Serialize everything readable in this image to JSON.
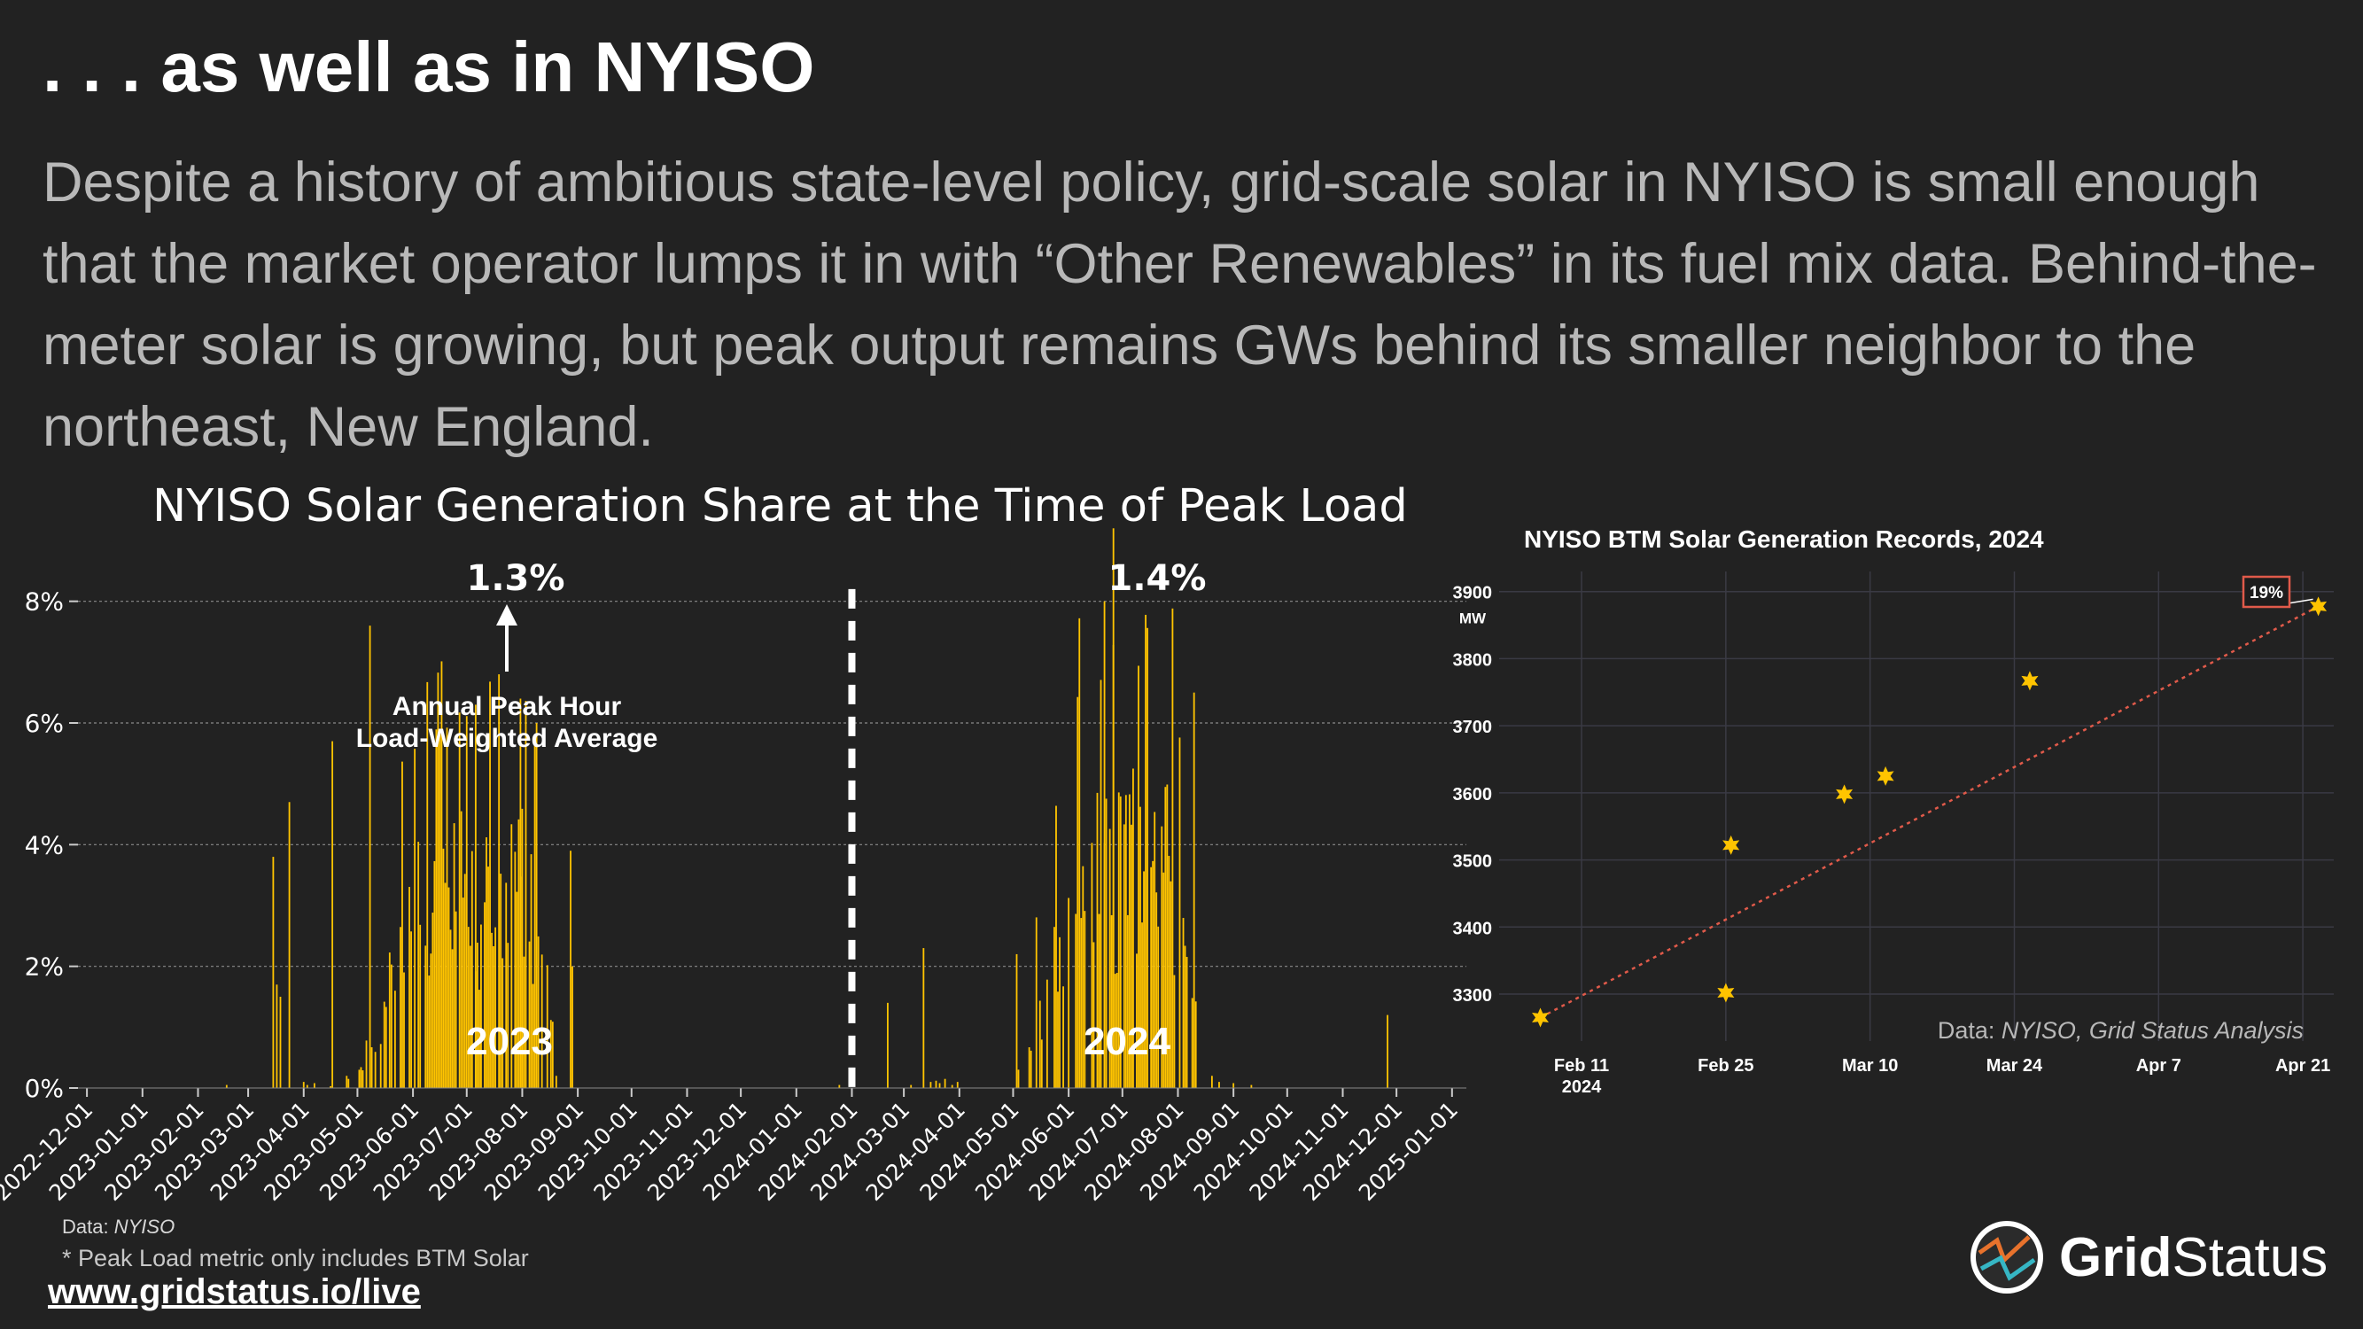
{
  "slide": {
    "title": ". . . as well as in NYISO",
    "subtitle": "Despite a history of ambitious state-level policy, grid-scale solar in NYISO is small enough that the market operator lumps it in with “Other Renewables” in its fuel mix data. Behind-the-meter solar is growing, but peak output remains GWs behind its smaller neighbor to the northeast, New England."
  },
  "footer": {
    "source_label": "Data:",
    "source_value": "NYISO",
    "note": "* Peak Load metric only includes BTM Solar",
    "link": "www.gridstatus.io/live"
  },
  "logo": {
    "bold": "Grid",
    "regular": "Status",
    "icon": "grid-status-logo-icon"
  },
  "colors": {
    "background": "#222222",
    "bar": "#ffc400",
    "trend": "#e05a4a",
    "marker": "#ffc400",
    "subtitle": "#b8b8b8"
  },
  "chart_data": [
    {
      "type": "bar",
      "title": "NYISO Solar Generation Share at the Time of Peak Load",
      "xlabel": "",
      "ylabel": "",
      "ylim": [
        0,
        9
      ],
      "y_ticks": [
        "0%",
        "2%",
        "4%",
        "6%",
        "8%"
      ],
      "y_tick_values": [
        0,
        2,
        4,
        6,
        8
      ],
      "grid": true,
      "x_ticks": [
        "2022-12-01",
        "2023-01-01",
        "2023-02-01",
        "2023-03-01",
        "2023-04-01",
        "2023-05-01",
        "2023-06-01",
        "2023-07-01",
        "2023-08-01",
        "2023-09-01",
        "2023-10-01",
        "2023-11-01",
        "2023-12-01",
        "2024-01-01",
        "2024-02-01",
        "2024-03-01",
        "2024-04-01",
        "2024-05-01",
        "2024-06-01",
        "2024-07-01",
        "2024-08-01",
        "2024-09-01",
        "2024-10-01",
        "2024-11-01",
        "2024-12-01",
        "2025-01-01"
      ],
      "x_range_days": [
        -5,
        770
      ],
      "x_origin_date": "2022-12-01",
      "bar_width_days": 1,
      "annotations": {
        "avg_2023": "1.3%",
        "avg_2024": "1.4%",
        "label_2023": "2023",
        "label_2024": "2024",
        "arrow_text_line1": "Annual Peak Hour",
        "arrow_text_line2": "Load-Weighted Average"
      },
      "series_description": "daily share of BTM solar in load at the hour of daily peak load (%)",
      "seed_2023": 2023,
      "seed_2024": 2024,
      "spikes": [
        {
          "day": 104,
          "value": 3.8
        },
        {
          "day": 106,
          "value": 1.7
        },
        {
          "day": 108,
          "value": 1.5
        },
        {
          "day": 113,
          "value": 4.7
        },
        {
          "day": 137,
          "value": 5.7
        },
        {
          "day": 158,
          "value": 7.6
        },
        {
          "day": 217,
          "value": 6.3
        },
        {
          "day": 230,
          "value": 6.8
        },
        {
          "day": 242,
          "value": 6.4
        },
        {
          "day": 270,
          "value": 3.9
        },
        {
          "day": 271,
          "value": 2.0
        },
        {
          "day": 467,
          "value": 2.3
        },
        {
          "day": 447,
          "value": 1.4
        },
        {
          "day": 519,
          "value": 2.2
        },
        {
          "day": 573,
          "value": 9.2
        },
        {
          "day": 568,
          "value": 8.0
        },
        {
          "day": 618,
          "value": 6.5
        },
        {
          "day": 726,
          "value": 1.2
        }
      ],
      "divider_day": 427
    },
    {
      "type": "scatter",
      "title": "NYISO BTM Solar Generation Records, 2024",
      "xlabel": "",
      "ylabel": "MW",
      "ylim": [
        3230,
        3930
      ],
      "y_ticks": [
        3300,
        3400,
        3500,
        3600,
        3700,
        3800,
        3900
      ],
      "x_ticks": [
        "Feb 11",
        "Feb 25",
        "Mar 10",
        "Mar 24",
        "Apr 7",
        "Apr 21"
      ],
      "x_tick_sub": "2024",
      "x_tick_values": [
        42,
        56,
        70,
        84,
        98,
        112
      ],
      "xlim": [
        34,
        115
      ],
      "x": [
        38,
        56,
        56.5,
        67.5,
        71.5,
        85.5,
        113.5
      ],
      "y": [
        3265,
        3302,
        3522,
        3598,
        3625,
        3767,
        3878
      ],
      "trend": {
        "x": [
          38,
          113.5
        ],
        "y": [
          3265,
          3878
        ]
      },
      "callout": "19%",
      "source_label": "Data:",
      "source_value": "NYISO, Grid Status Analysis"
    }
  ]
}
